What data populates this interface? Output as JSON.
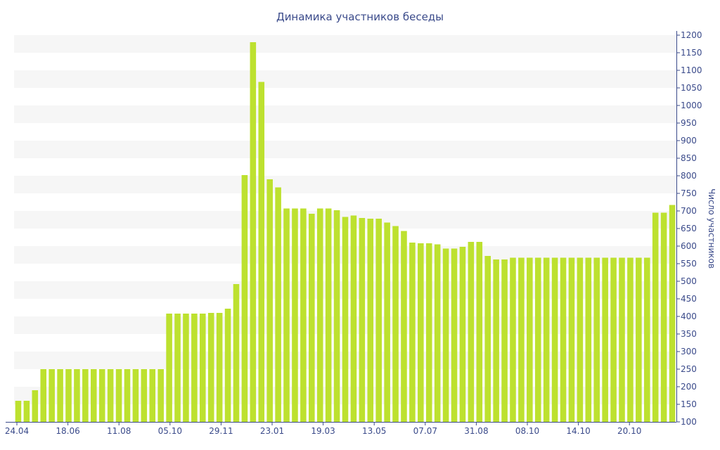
{
  "chart_data": {
    "type": "bar",
    "title": "Динамика участников беседы",
    "xlabel": "",
    "ylabel": "Число участников",
    "y_axis_side": "right",
    "ylim": [
      100,
      1200
    ],
    "y_ticks": [
      100,
      150,
      200,
      250,
      300,
      350,
      400,
      450,
      500,
      550,
      600,
      650,
      700,
      750,
      800,
      850,
      900,
      950,
      1000,
      1050,
      1100,
      1150,
      1200
    ],
    "x_tick_labels": [
      "24.04",
      "18.06",
      "11.08",
      "05.10",
      "29.11",
      "23.01",
      "19.03",
      "13.05",
      "07.07",
      "31.08",
      "08.10",
      "14.10",
      "20.10"
    ],
    "grid": "horizontal bands",
    "colors": {
      "bar": "#bde12f",
      "band": "#f6f6f6",
      "axis": "#3a4a8a"
    },
    "values": [
      160,
      160,
      190,
      250,
      250,
      250,
      250,
      250,
      250,
      250,
      250,
      250,
      250,
      250,
      250,
      250,
      250,
      250,
      408,
      408,
      408,
      408,
      408,
      410,
      410,
      422,
      492,
      802,
      1180,
      1067,
      790,
      767,
      707,
      707,
      707,
      692,
      707,
      707,
      702,
      683,
      687,
      680,
      678,
      678,
      667,
      657,
      643,
      610,
      608,
      608,
      605,
      593,
      593,
      598,
      612,
      612,
      572,
      562,
      562,
      567,
      567,
      567,
      567,
      567,
      567,
      567,
      567,
      567,
      567,
      567,
      567,
      567,
      567,
      567,
      567,
      567,
      695,
      695,
      717
    ]
  }
}
